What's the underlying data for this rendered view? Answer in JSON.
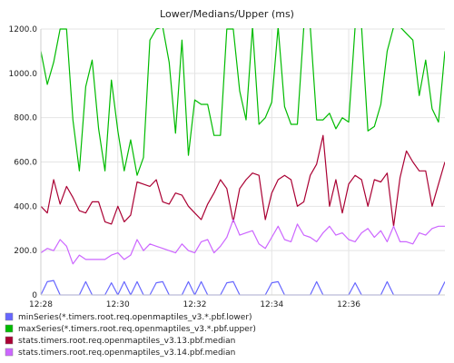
{
  "chart_data": {
    "type": "line",
    "title": "Lower/Medians/Upper (ms)",
    "ylim": [
      0,
      1200
    ],
    "yticks": [
      "0",
      "200.0",
      "400.0",
      "600.0",
      "800.0",
      "1000.0",
      "1200.0"
    ],
    "ytick_values": [
      0,
      200,
      400,
      600,
      800,
      1000,
      1200
    ],
    "xlim": [
      "12:28",
      "12:38:30"
    ],
    "xticks": [
      "12:28",
      "12:30",
      "12:32",
      "12:34",
      "12:36"
    ],
    "x": [
      "12:28:00",
      "12:28:10",
      "12:28:20",
      "12:28:30",
      "12:28:40",
      "12:28:50",
      "12:29:00",
      "12:29:10",
      "12:29:20",
      "12:29:30",
      "12:29:40",
      "12:29:50",
      "12:30:00",
      "12:30:10",
      "12:30:20",
      "12:30:30",
      "12:30:40",
      "12:30:50",
      "12:31:00",
      "12:31:10",
      "12:31:20",
      "12:31:30",
      "12:31:40",
      "12:31:50",
      "12:32:00",
      "12:32:10",
      "12:32:20",
      "12:32:30",
      "12:32:40",
      "12:32:50",
      "12:33:00",
      "12:33:10",
      "12:33:20",
      "12:33:30",
      "12:33:40",
      "12:33:50",
      "12:34:00",
      "12:34:10",
      "12:34:20",
      "12:34:30",
      "12:34:40",
      "12:34:50",
      "12:35:00",
      "12:35:10",
      "12:35:20",
      "12:35:30",
      "12:35:40",
      "12:35:50",
      "12:36:00",
      "12:36:10",
      "12:36:20",
      "12:36:30",
      "12:36:40",
      "12:36:50",
      "12:37:00",
      "12:37:10",
      "12:37:20",
      "12:37:30",
      "12:37:40",
      "12:37:50",
      "12:38:00",
      "12:38:10",
      "12:38:20",
      "12:38:30"
    ],
    "grid": true,
    "legend_position": "bottom",
    "series": [
      {
        "name": "minSeries(*.timers.root.req.openmaptiles_v3.*.pbf.lower)",
        "color": "#6666ff",
        "values": [
          0,
          60,
          65,
          0,
          0,
          0,
          0,
          60,
          0,
          0,
          0,
          55,
          0,
          60,
          0,
          60,
          0,
          0,
          55,
          60,
          0,
          0,
          0,
          60,
          0,
          60,
          0,
          0,
          0,
          55,
          60,
          0,
          0,
          0,
          0,
          0,
          55,
          60,
          0,
          0,
          0,
          0,
          0,
          60,
          0,
          0,
          0,
          0,
          0,
          55,
          0,
          0,
          0,
          0,
          60,
          0,
          0,
          0,
          0,
          0,
          0,
          0,
          0,
          60
        ]
      },
      {
        "name": "maxSeries(*.timers.root.req.openmaptiles_v3.*.pbf.upper)",
        "color": "#00bb00",
        "values": [
          1100,
          950,
          1050,
          1200,
          1200,
          790,
          560,
          940,
          1060,
          750,
          560,
          970,
          740,
          560,
          700,
          540,
          620,
          1150,
          1200,
          1210,
          1050,
          730,
          1150,
          630,
          880,
          860,
          860,
          720,
          720,
          1200,
          1200,
          920,
          790,
          1210,
          770,
          800,
          870,
          1210,
          850,
          770,
          770,
          1210,
          1210,
          790,
          790,
          820,
          750,
          800,
          780,
          1210,
          1210,
          740,
          760,
          860,
          1100,
          1210,
          1210,
          1180,
          1150,
          900,
          1060,
          840,
          780,
          1100
        ]
      },
      {
        "name": "stats.timers.root.req.openmaptiles_v3.13.pbf.median",
        "color": "#aa0033",
        "values": [
          400,
          370,
          520,
          410,
          490,
          440,
          380,
          370,
          420,
          420,
          330,
          320,
          400,
          330,
          360,
          510,
          500,
          490,
          520,
          420,
          410,
          460,
          450,
          400,
          370,
          340,
          410,
          460,
          520,
          480,
          330,
          480,
          520,
          550,
          540,
          340,
          460,
          520,
          540,
          520,
          400,
          420,
          540,
          590,
          720,
          400,
          520,
          370,
          500,
          540,
          520,
          400,
          520,
          510,
          550,
          310,
          530,
          650,
          600,
          560,
          560,
          400,
          500,
          600
        ]
      },
      {
        "name": "stats.timers.root.req.openmaptiles_v3.14.pbf.median",
        "color": "#cc66ff",
        "values": [
          190,
          210,
          200,
          250,
          220,
          140,
          180,
          160,
          160,
          160,
          160,
          180,
          190,
          160,
          180,
          250,
          200,
          230,
          220,
          210,
          200,
          190,
          230,
          200,
          190,
          240,
          250,
          190,
          220,
          260,
          340,
          270,
          280,
          290,
          230,
          210,
          260,
          310,
          250,
          240,
          320,
          270,
          260,
          240,
          280,
          310,
          270,
          280,
          250,
          240,
          280,
          300,
          260,
          290,
          240,
          310,
          240,
          240,
          230,
          280,
          270,
          300,
          310,
          310
        ]
      }
    ]
  }
}
